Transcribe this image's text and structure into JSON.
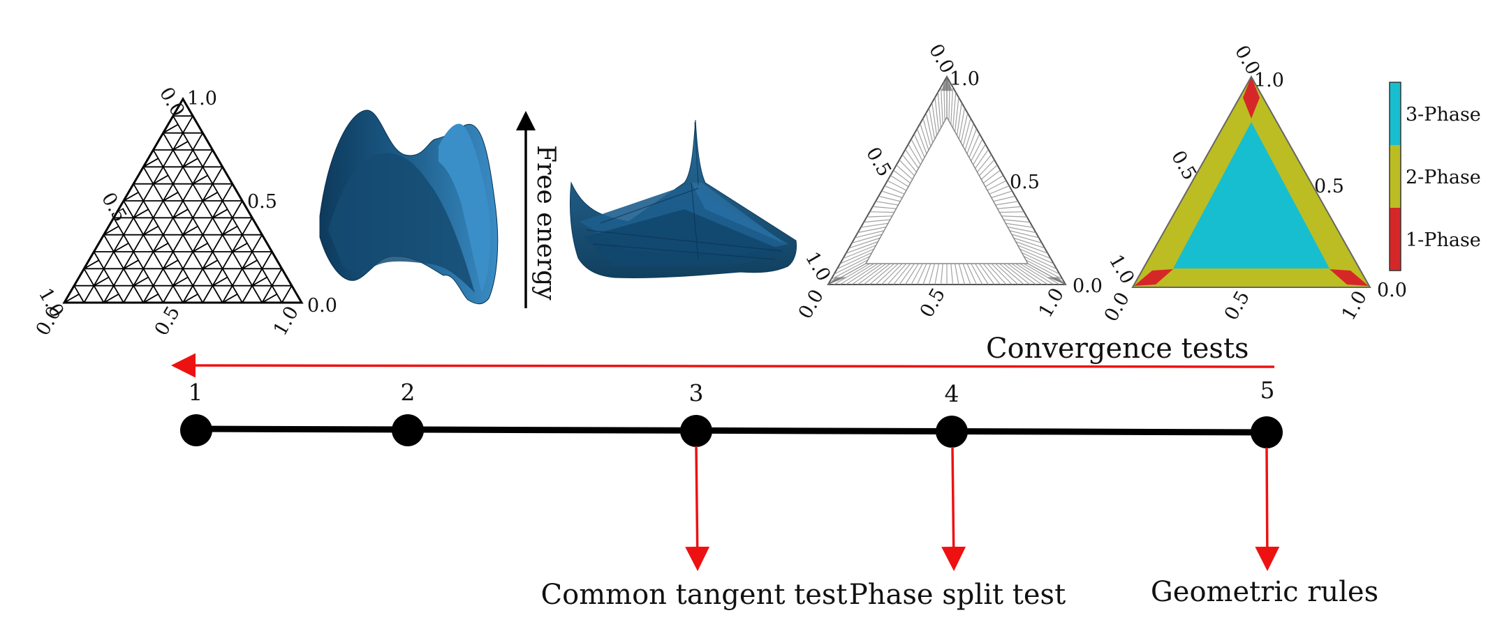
{
  "panels": {
    "grid_triangle": {
      "top_tick": "0.0",
      "apex": "1.0",
      "left_mid": "0.5",
      "right_mid": "0.5",
      "left_base": "1.0",
      "right_base": "0.0",
      "bottom_left": "0.0",
      "bottom_mid": "0.5",
      "bottom_right": "1.0"
    },
    "free_energy_label": "Free energy",
    "gray_triangle": {
      "top_tick": "0.0",
      "apex": "1.0",
      "left_mid": "0.5",
      "right_mid": "0.5",
      "left_base": "1.0",
      "right_base": "0.0",
      "bottom_left": "0.0",
      "bottom_mid": "0.5",
      "bottom_right": "1.0"
    },
    "phase_triangle": {
      "top_tick": "0.0",
      "apex": "1.0",
      "left_mid": "0.5",
      "right_mid": "0.5",
      "left_base": "1.0",
      "right_base": "0.0",
      "bottom_left": "0.0",
      "bottom_mid": "0.5",
      "bottom_right": "1.0"
    },
    "legend": [
      {
        "label": "3-Phase",
        "color": "#17becf"
      },
      {
        "label": "2-Phase",
        "color": "#bcbd22"
      },
      {
        "label": "1-Phase",
        "color": "#d62728"
      }
    ],
    "surface_color": "#1f5f8b"
  },
  "timeline": {
    "convergence_label": "Convergence tests",
    "steps": [
      "1",
      "2",
      "3",
      "4",
      "5"
    ],
    "tests": [
      "Common tangent test",
      "Phase split test",
      "Geometric rules"
    ],
    "arrow_color": "#ee1111"
  }
}
